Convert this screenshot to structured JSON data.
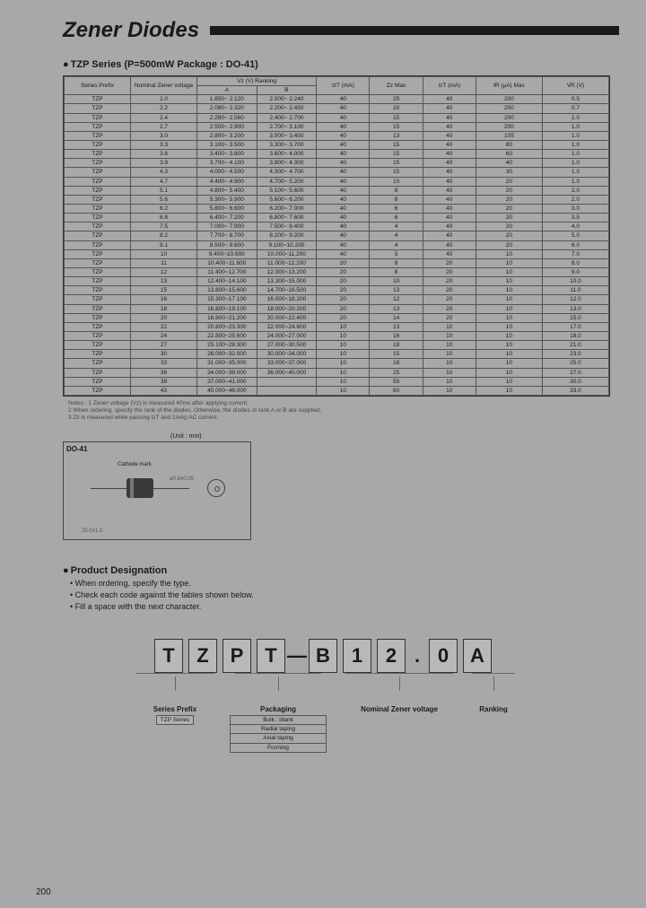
{
  "page_number": "200",
  "title": "Zener Diodes",
  "subtitle": "TZP Series (P=500mW Package : DO-41)",
  "table": {
    "header_groups": [
      "Series Prefix",
      "Nominal Zener voltage",
      "Vz (V) Ranking",
      "",
      "IzT (mA)",
      "Zz Max",
      "IzT (mA)",
      "IR (μA) Max",
      "VR (V)"
    ],
    "header_sub": [
      "",
      "",
      "A",
      "B",
      "",
      "",
      "",
      "",
      ""
    ],
    "rows": [
      [
        "TZP",
        "2.0",
        "1.850~ 2.120",
        "2.000~ 2.240",
        "40",
        "25",
        "40",
        "200",
        "0.5"
      ],
      [
        "TZP",
        "2.2",
        "2.080~ 2.320",
        "2.200~ 2.450",
        "40",
        "20",
        "40",
        "200",
        "0.7"
      ],
      [
        "TZP",
        "2.4",
        "2.280~ 2.560",
        "2.400~ 2.700",
        "40",
        "15",
        "40",
        "200",
        "1.0"
      ],
      [
        "TZP",
        "2.7",
        "2.500~ 2.900",
        "2.700~ 3.100",
        "40",
        "15",
        "40",
        "200",
        "1.0"
      ],
      [
        "TZP",
        "3.0",
        "2.800~ 3.200",
        "3.000~ 3.400",
        "40",
        "13",
        "40",
        "105",
        "1.0"
      ],
      [
        "TZP",
        "3.3",
        "3.100~ 3.500",
        "3.300~ 3.700",
        "40",
        "15",
        "40",
        "80",
        "1.0"
      ],
      [
        "TZP",
        "3.6",
        "3.400~ 3.800",
        "3.600~ 4.000",
        "40",
        "15",
        "40",
        "60",
        "1.0"
      ],
      [
        "TZP",
        "3.9",
        "3.700~ 4.100",
        "3.900~ 4.300",
        "40",
        "15",
        "40",
        "40",
        "1.0"
      ],
      [
        "TZP",
        "4.3",
        "4.000~ 4.500",
        "4.300~ 4.700",
        "40",
        "15",
        "40",
        "30",
        "1.0"
      ],
      [
        "TZP",
        "4.7",
        "4.400~ 4.900",
        "4.700~ 5.200",
        "40",
        "10",
        "40",
        "20",
        "1.0"
      ],
      [
        "TZP",
        "5.1",
        "4.800~ 5.400",
        "5.100~ 5.600",
        "40",
        "8",
        "40",
        "20",
        "2.0"
      ],
      [
        "TZP",
        "5.6",
        "5.300~ 5.900",
        "5.600~ 6.200",
        "40",
        "8",
        "40",
        "20",
        "2.0"
      ],
      [
        "TZP",
        "6.2",
        "5.800~ 6.600",
        "6.200~ 7.000",
        "40",
        "6",
        "40",
        "20",
        "3.0"
      ],
      [
        "TZP",
        "6.8",
        "6.400~ 7.200",
        "6.800~ 7.600",
        "40",
        "6",
        "40",
        "20",
        "3.5"
      ],
      [
        "TZP",
        "7.5",
        "7.000~ 7.900",
        "7.500~ 8.400",
        "40",
        "4",
        "40",
        "20",
        "4.0"
      ],
      [
        "TZP",
        "8.2",
        "7.700~ 8.700",
        "8.200~ 9.200",
        "40",
        "4",
        "40",
        "20",
        "5.0"
      ],
      [
        "TZP",
        "9.1",
        "8.500~ 9.600",
        "9.100~10.200",
        "40",
        "4",
        "40",
        "20",
        "6.0"
      ],
      [
        "TZP",
        "10",
        "9.400~10.600",
        "10.000~11.200",
        "40",
        "5",
        "40",
        "10",
        "7.0"
      ],
      [
        "TZP",
        "11",
        "10.400~11.600",
        "11.000~12.200",
        "20",
        "8",
        "20",
        "10",
        "8.0"
      ],
      [
        "TZP",
        "12",
        "11.400~12.700",
        "12.000~13.200",
        "20",
        "8",
        "20",
        "10",
        "9.0"
      ],
      [
        "TZP",
        "13",
        "12.400~14.100",
        "13.300~15.000",
        "20",
        "10",
        "20",
        "10",
        "10.0"
      ],
      [
        "TZP",
        "15",
        "13.800~15.600",
        "14.700~16.500",
        "20",
        "13",
        "20",
        "10",
        "11.0"
      ],
      [
        "TZP",
        "16",
        "15.300~17.100",
        "16.000~18.200",
        "20",
        "12",
        "20",
        "10",
        "12.0"
      ],
      [
        "TZP",
        "18",
        "16.800~19.100",
        "18.000~20.200",
        "20",
        "13",
        "20",
        "10",
        "13.0"
      ],
      [
        "TZP",
        "20",
        "18.800~21.200",
        "20.000~22.400",
        "20",
        "14",
        "20",
        "10",
        "15.0"
      ],
      [
        "TZP",
        "22",
        "20.800~23.300",
        "22.000~24.600",
        "10",
        "13",
        "10",
        "10",
        "17.0"
      ],
      [
        "TZP",
        "24",
        "22.800~25.600",
        "24.000~27.000",
        "10",
        "16",
        "10",
        "10",
        "18.0"
      ],
      [
        "TZP",
        "27",
        "25.100~28.300",
        "27.000~30.500",
        "10",
        "18",
        "10",
        "10",
        "21.0"
      ],
      [
        "TZP",
        "30",
        "28.000~32.000",
        "30.000~34.000",
        "10",
        "15",
        "10",
        "10",
        "23.0"
      ],
      [
        "TZP",
        "33",
        "31.000~35.000",
        "33.000~37.000",
        "10",
        "18",
        "10",
        "10",
        "25.0"
      ],
      [
        "TZP",
        "36",
        "34.000~38.000",
        "36.000~40.000",
        "10",
        "25",
        "10",
        "10",
        "27.0"
      ],
      [
        "TZP",
        "39",
        "37.000~41.000",
        "",
        "10",
        "50",
        "10",
        "10",
        "30.0"
      ],
      [
        "TZP",
        "43",
        "40.000~46.000",
        "",
        "10",
        "60",
        "10",
        "10",
        "33.0"
      ]
    ]
  },
  "notes": [
    "Notes : 1  Zener voltage (Vz) is measured 40ms after applying current.",
    "2  When ordering, specify the rank of the diodes. Otherwise, the diodes of rank A or B are supplied.",
    "3  Zz is measured while passing IzT and 1mAp AC current."
  ],
  "unit_label": "(Unit : mm)",
  "package": {
    "name": "DO-41",
    "cathode_label": "Cathode mark"
  },
  "product_designation": {
    "title": "Product Designation",
    "lines": [
      "When ordering, specify the type.",
      "Check each code against the tables shown below.",
      "Fill a space with the next character."
    ]
  },
  "designation_boxes": [
    "T",
    "Z",
    "P",
    "T",
    "—",
    "B",
    "1",
    "2",
    ".",
    "0",
    "A"
  ],
  "designation_labels": {
    "series": "Series Prefix",
    "series_box": "TZP Series",
    "packaging": "Packaging",
    "packaging_items": [
      "Bulk : blank",
      "Radial taping",
      "Axial taping",
      "Forming"
    ],
    "nominal": "Nominal Zener voltage",
    "ranking": "Ranking"
  }
}
